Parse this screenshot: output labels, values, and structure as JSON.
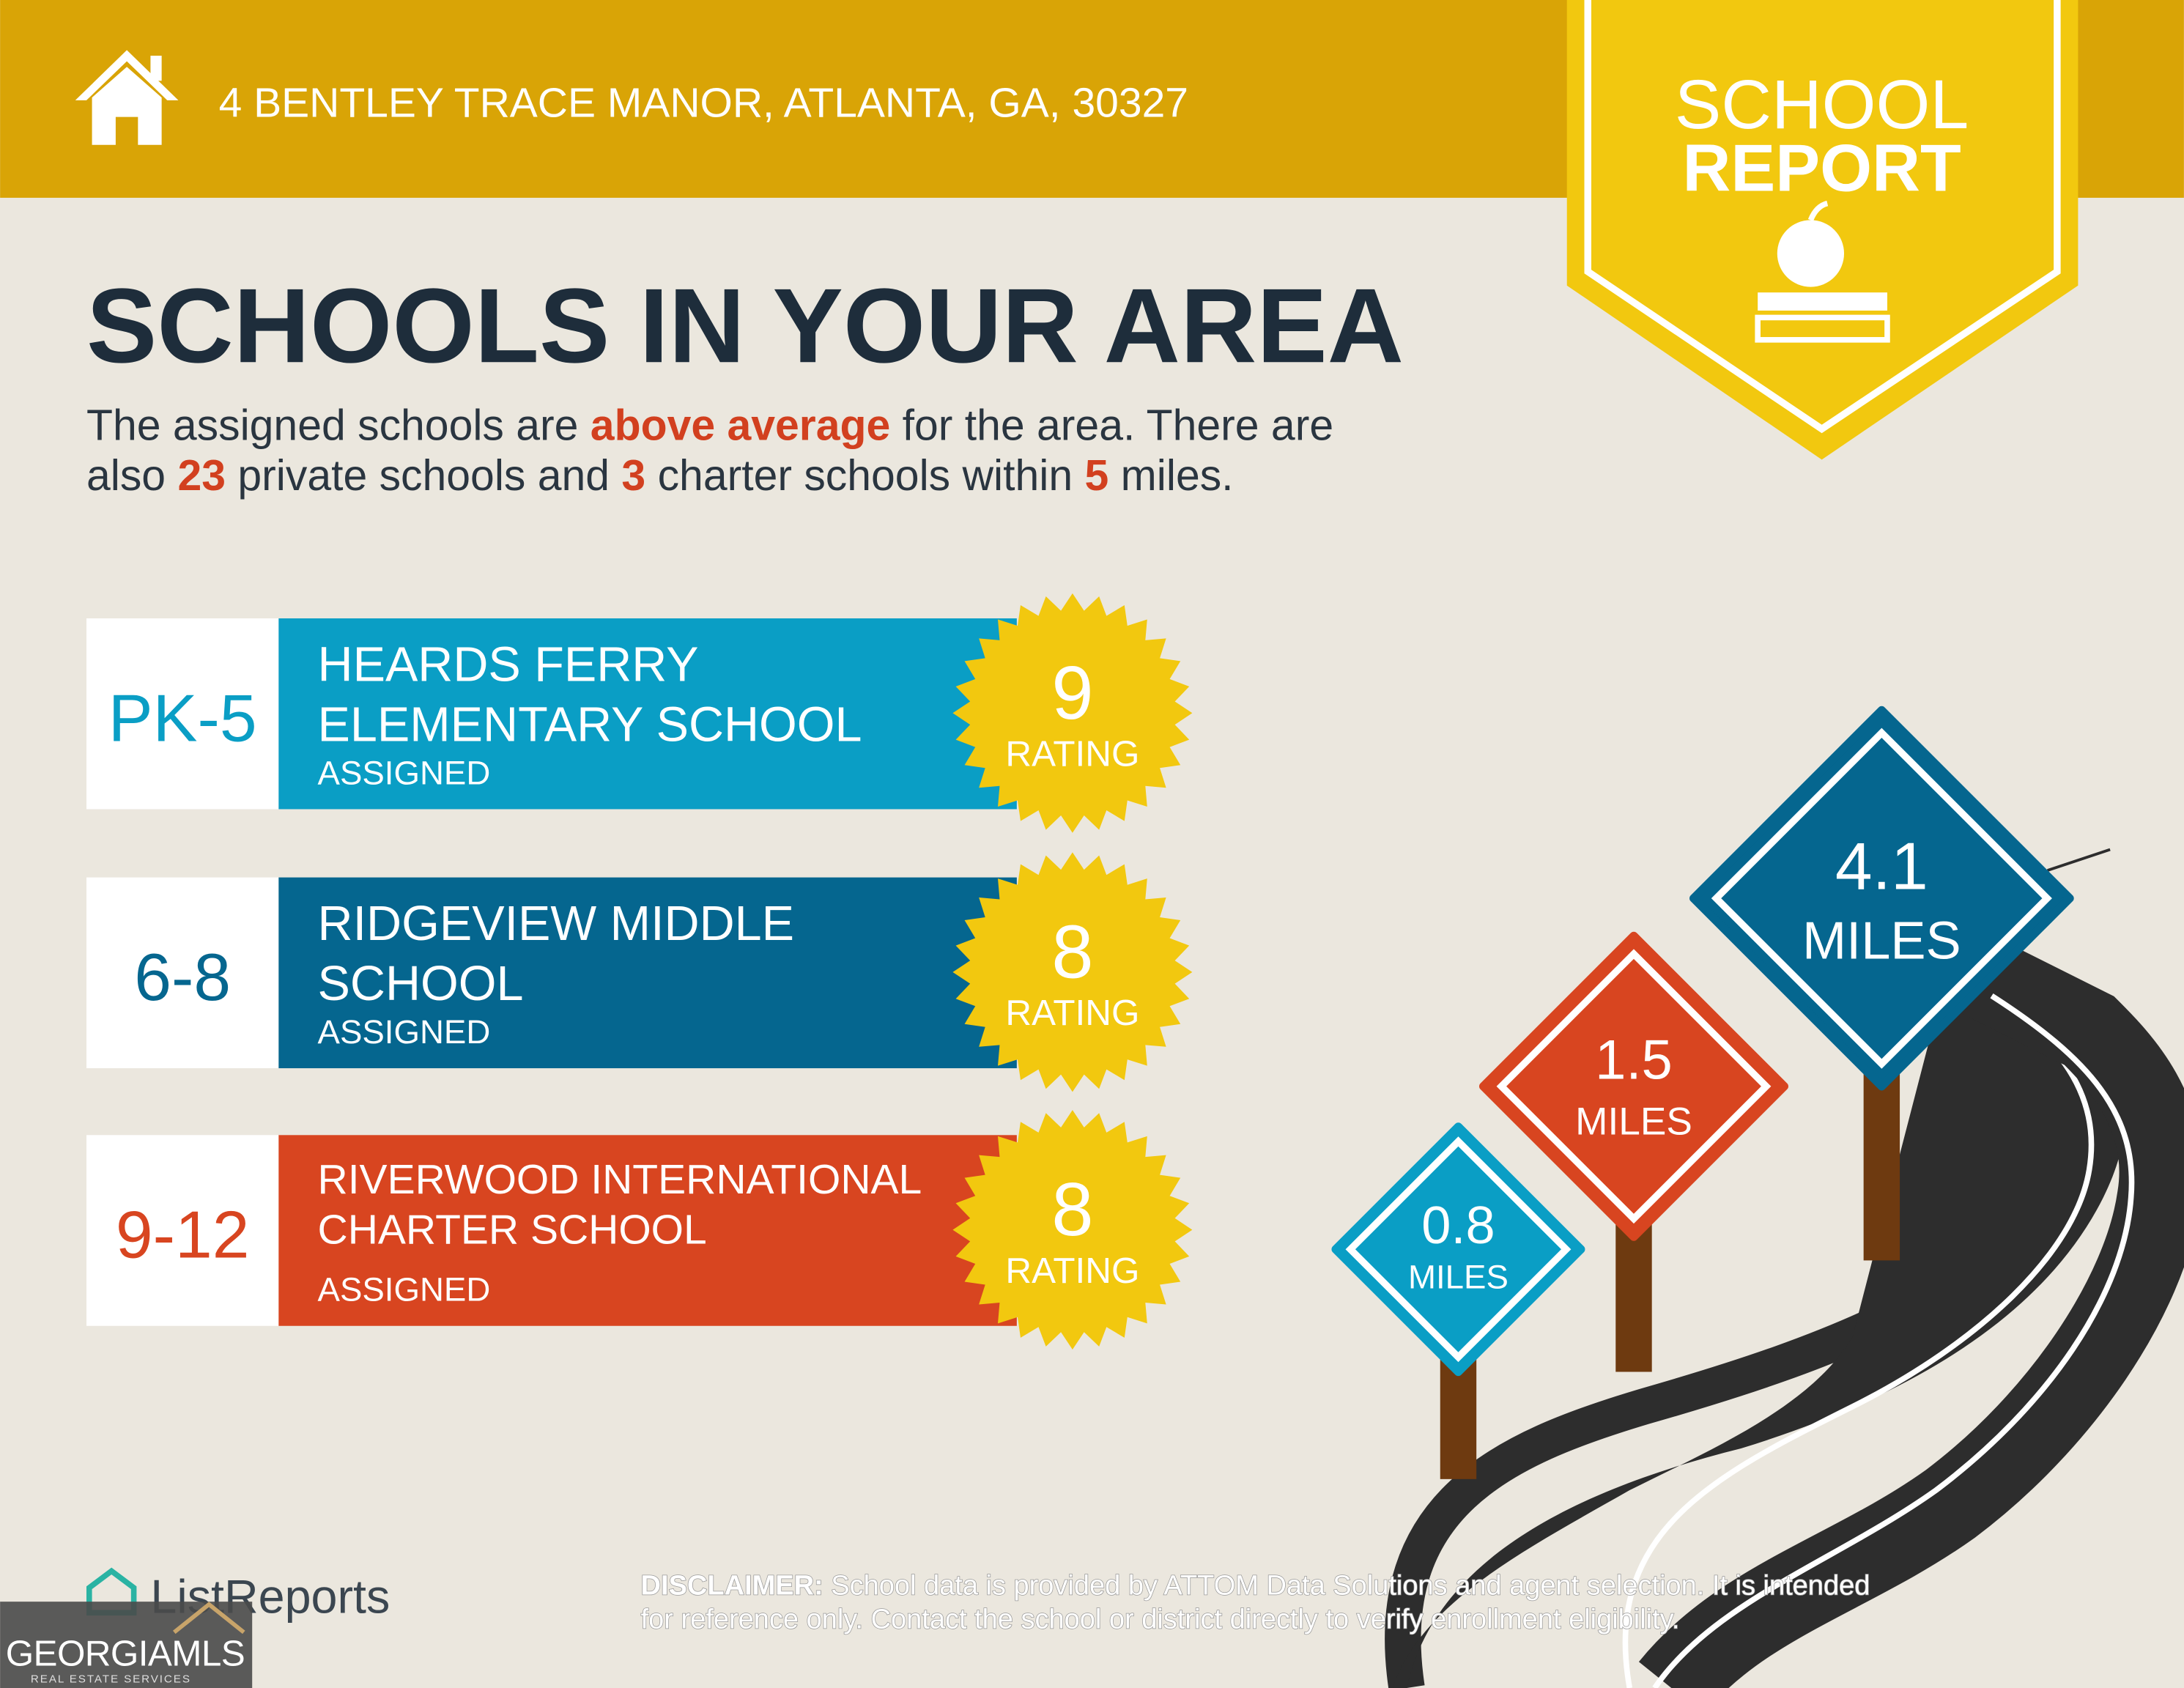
{
  "header": {
    "address": "4 BENTLEY TRACE MANOR, ATLANTA, GA, 30327"
  },
  "badge": {
    "line1": "SCHOOL",
    "line2": "REPORT"
  },
  "heading": "SCHOOLS IN YOUR AREA",
  "intro": {
    "line1": [
      "The assigned schools are",
      "above average",
      "for the area. There are"
    ],
    "line2": [
      "also",
      "23",
      "private schools and",
      "3",
      "charter schools within",
      "5",
      "miles."
    ]
  },
  "schools": [
    {
      "grades": "PK-5",
      "name": [
        "HEARDS FERRY",
        "ELEMENTARY SCHOOL"
      ],
      "status": "ASSIGNED",
      "rating": 9,
      "rating_label": "RATING",
      "color": "#0a9ec5"
    },
    {
      "grades": "6-8",
      "name": [
        "RIDGEVIEW MIDDLE",
        "SCHOOL"
      ],
      "status": "ASSIGNED",
      "rating": 8,
      "rating_label": "RATING",
      "color": "#05668f"
    },
    {
      "grades": "9-12",
      "name": [
        "RIVERWOOD INTERNATIONAL",
        "CHARTER SCHOOL"
      ],
      "status": "ASSIGNED",
      "rating": 8,
      "rating_label": "RATING",
      "color": "#d84520"
    }
  ],
  "signs": [
    {
      "distance": "4.1",
      "unit": "MILES",
      "color": "#05668f"
    },
    {
      "distance": "1.5",
      "unit": "MILES",
      "color": "#d84520"
    },
    {
      "distance": "0.8",
      "unit": "MILES",
      "color": "#0a9ec5"
    }
  ],
  "logo": "ListReports",
  "mls": {
    "name": "GEORGIAMLS",
    "tagline": "REAL ESTATE SERVICES"
  },
  "disclaimer": {
    "label": "DISCLAIMER:",
    "line1": "School data is provided by ATTOM Data Solutions and agent selection. It is intended",
    "line2": "for reference only. Contact the school or district directly to verify enrollment eligibility."
  }
}
